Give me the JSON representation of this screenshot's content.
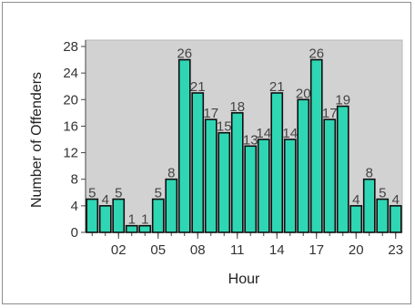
{
  "chart_data": {
    "type": "bar",
    "xlabel": "Hour",
    "ylabel": "Number of Offenders",
    "x": [
      0,
      1,
      2,
      3,
      4,
      5,
      6,
      7,
      8,
      9,
      10,
      11,
      12,
      13,
      14,
      15,
      16,
      17,
      18,
      19,
      20,
      21,
      22,
      23
    ],
    "values": [
      5,
      4,
      5,
      1,
      1,
      5,
      8,
      26,
      21,
      17,
      15,
      18,
      13,
      14,
      21,
      14,
      20,
      26,
      17,
      19,
      4,
      8,
      5,
      4
    ],
    "x_tick_labels": [
      {
        "x": 2,
        "label": "02"
      },
      {
        "x": 5,
        "label": "05"
      },
      {
        "x": 8,
        "label": "08"
      },
      {
        "x": 11,
        "label": "11"
      },
      {
        "x": 14,
        "label": "14"
      },
      {
        "x": 17,
        "label": "17"
      },
      {
        "x": 20,
        "label": "20"
      },
      {
        "x": 23,
        "label": "23"
      }
    ],
    "y_ticks": [
      0,
      4,
      8,
      12,
      16,
      20,
      24,
      28
    ],
    "ylim": [
      0,
      28
    ],
    "grid": false,
    "colors": {
      "bar_fill": "#2fd6b4",
      "bar_stroke": "#0f0f0f",
      "plot_background": "#d2d2d2",
      "frame_border": "#8e8e8e"
    }
  }
}
